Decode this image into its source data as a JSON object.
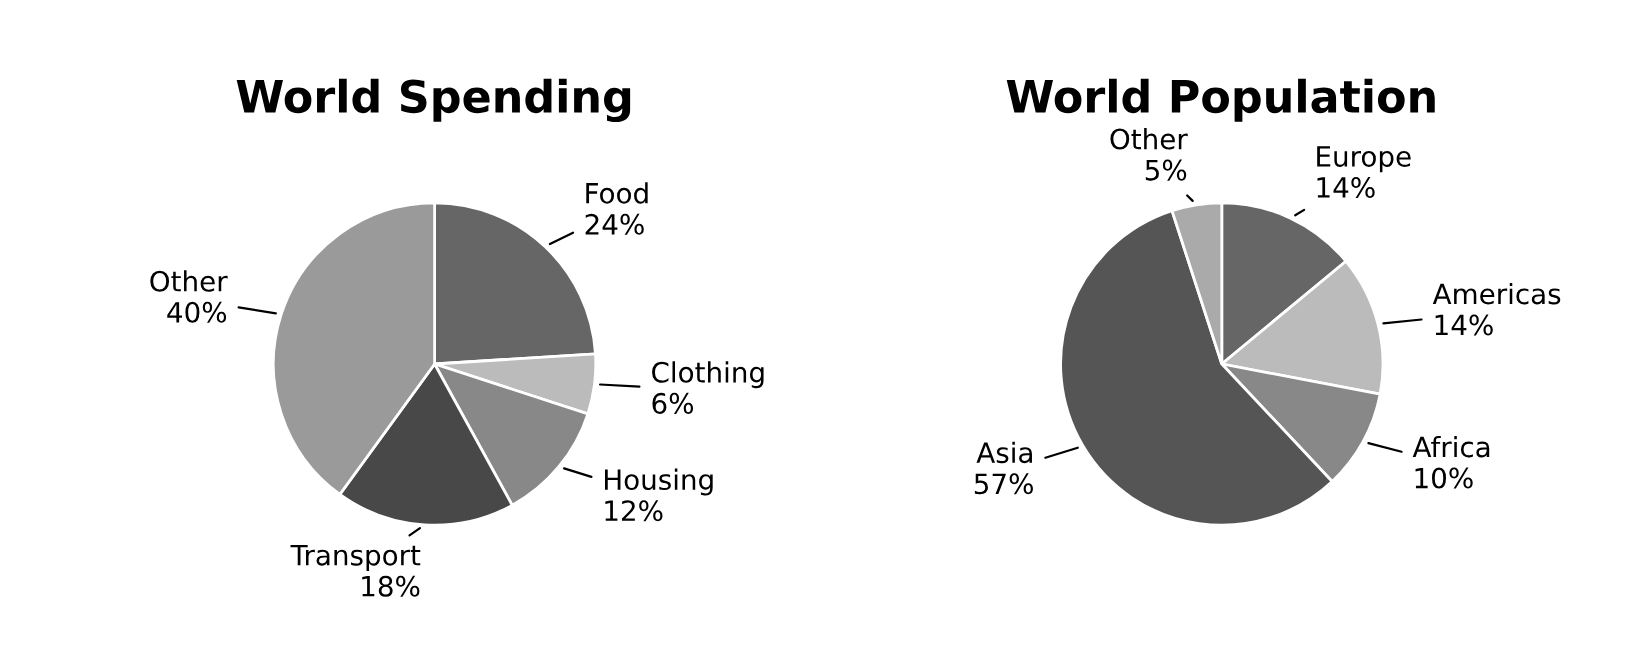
{
  "chart_data": [
    {
      "type": "pie",
      "title": "World Spending",
      "categories": [
        "Food",
        "Clothing",
        "Housing",
        "Transport",
        "Other"
      ],
      "values": [
        24,
        6,
        12,
        18,
        40
      ],
      "value_labels": [
        "24%",
        "6%",
        "12%",
        "18%",
        "40%"
      ],
      "colors": [
        "#666666",
        "#bbbbbb",
        "#888888",
        "#484848",
        "#9a9a9a"
      ]
    },
    {
      "type": "pie",
      "title": "World Population",
      "categories": [
        "Europe",
        "Americas",
        "Africa",
        "Asia",
        "Other"
      ],
      "values": [
        14,
        14,
        10,
        57,
        5
      ],
      "value_labels": [
        "14%",
        "14%",
        "10%",
        "57%",
        "5%"
      ],
      "colors": [
        "#666666",
        "#bbbbbb",
        "#888888",
        "#555555",
        "#aaaaaa"
      ]
    }
  ]
}
